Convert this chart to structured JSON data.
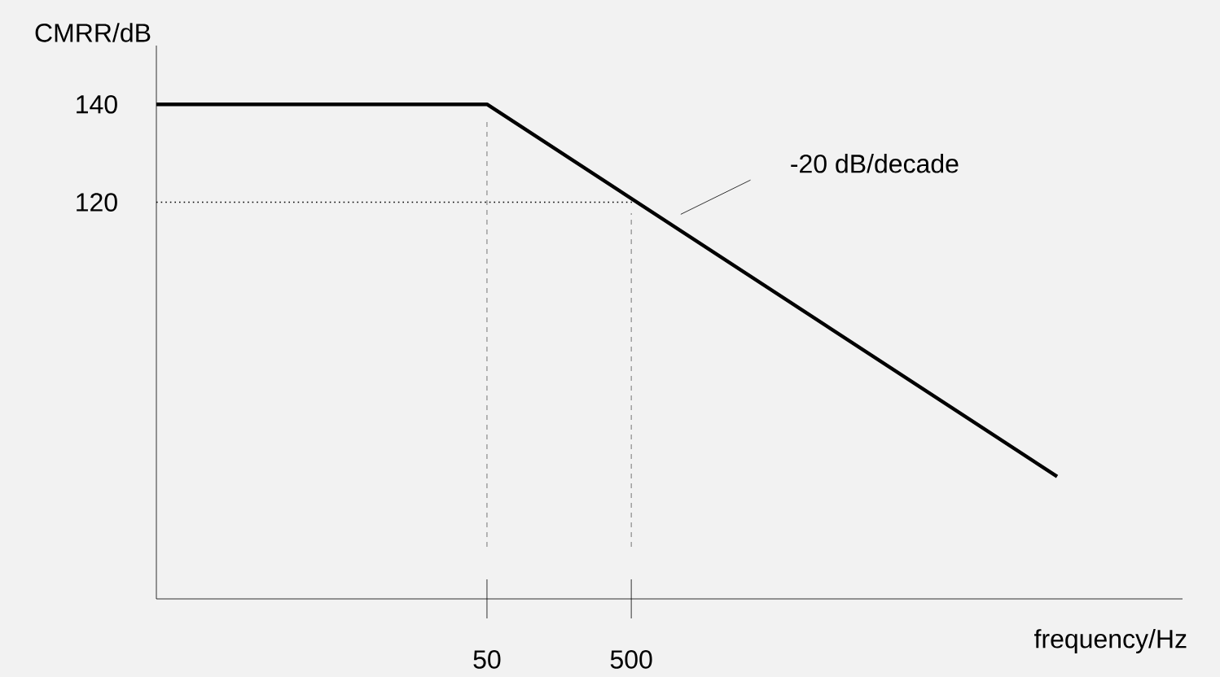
{
  "chart_data": {
    "type": "line",
    "xlabel": "frequency/Hz",
    "ylabel": "CMRR/dB",
    "x": [
      0.256,
      50,
      446000
    ],
    "series": [
      {
        "color": "#000000",
        "values": [
          140,
          140,
          64
        ]
      }
    ],
    "log": "x",
    "xlim": [
      0.256,
      3300000
    ],
    "ylim": [
      39,
      152
    ],
    "xticks": [
      50,
      500
    ],
    "yticks": [
      120,
      140
    ],
    "marker": "none",
    "line_style": "solid",
    "ref_lines": [
      {
        "axis": "x",
        "value": 50,
        "color": "#555555",
        "line_style": "dashed"
      },
      {
        "axis": "x",
        "value": 500,
        "color": "#555555",
        "line_style": "dashed"
      },
      {
        "axis": "y",
        "value": 120,
        "color": "#000000",
        "line_style": "dotted"
      }
    ],
    "annotations": [
      "-20 dB/decade"
    ]
  }
}
